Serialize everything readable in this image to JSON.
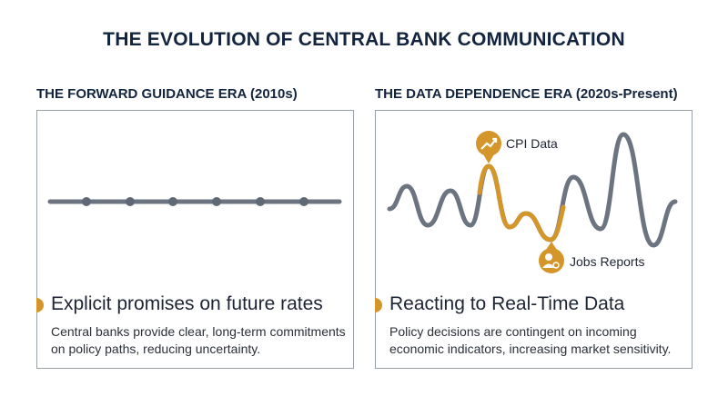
{
  "header": {
    "title": "THE EVOLUTION OF CENTRAL BANK COMMUNICATION"
  },
  "panels": [
    {
      "heading": "THE FORWARD GUIDANCE ERA (2010s)",
      "subheading": "Explicit promises on future rates",
      "text": "Central banks provide clear, long-term commitments on policy paths, reducing uncertainty."
    },
    {
      "heading": "THE DATA DEPENDENCE ERA (2020s-Present)",
      "subheading": "Reacting to Real-Time Data",
      "text": "Policy decisions are contingent on incoming economic indicators, increasing market sensitivity."
    }
  ],
  "callouts": [
    "CPI Data",
    "Jobs Reports"
  ]
}
